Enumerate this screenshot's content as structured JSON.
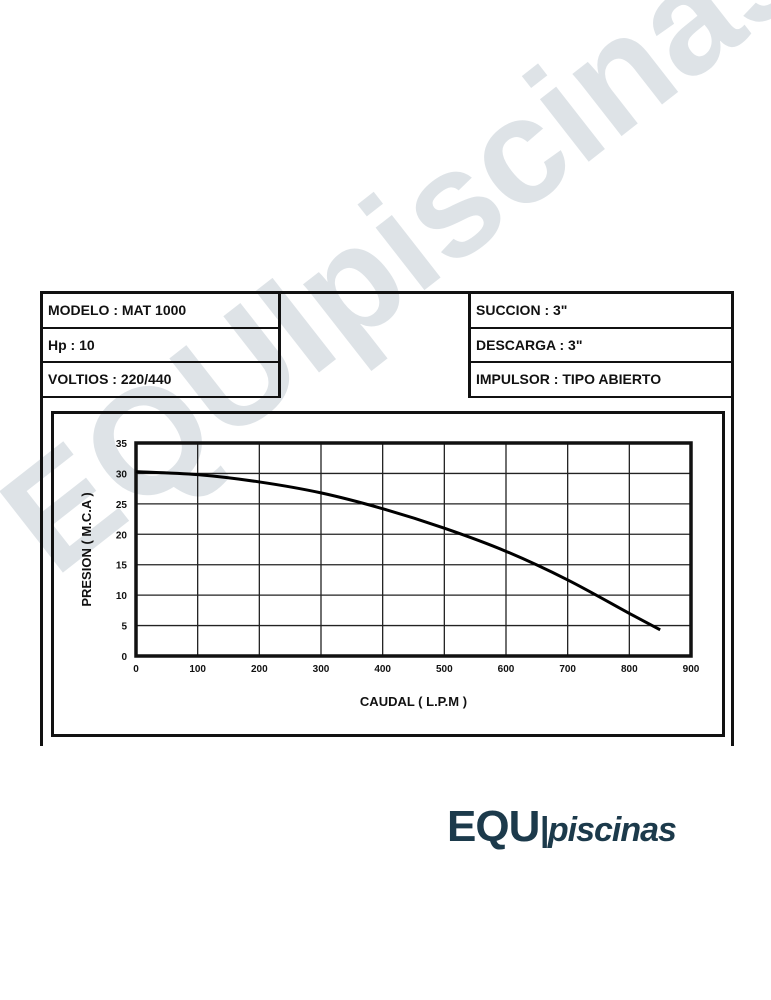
{
  "specs": {
    "left": [
      "MODELO : MAT 1000",
      "Hp : 10",
      "VOLTIOS : 220/440"
    ],
    "right": [
      "SUCCION : 3\"",
      "DESCARGA : 3\"",
      "IMPULSOR : TIPO ABIERTO"
    ]
  },
  "logo": {
    "part1": "EQU",
    "part2": "|piscinas",
    "color": "#1c3a4b"
  },
  "watermark": "EQUIpiscinas",
  "chart_data": {
    "type": "line",
    "title": "",
    "xlabel": "CAUDAL ( L.P.M )",
    "ylabel": "PRESION ( M.C.A )",
    "xlim": [
      0,
      900
    ],
    "ylim": [
      0,
      35
    ],
    "xticks": [
      0,
      100,
      200,
      300,
      400,
      500,
      600,
      700,
      800,
      900
    ],
    "yticks": [
      0,
      5,
      10,
      15,
      20,
      25,
      30,
      35
    ],
    "grid": true,
    "series": [
      {
        "x": [
          0,
          100,
          200,
          300,
          400,
          500,
          600,
          700,
          800,
          850
        ],
        "y": [
          30.3,
          29.8,
          28.6,
          26.8,
          24.2,
          21.0,
          17.2,
          12.5,
          7.0,
          4.3
        ]
      }
    ]
  }
}
